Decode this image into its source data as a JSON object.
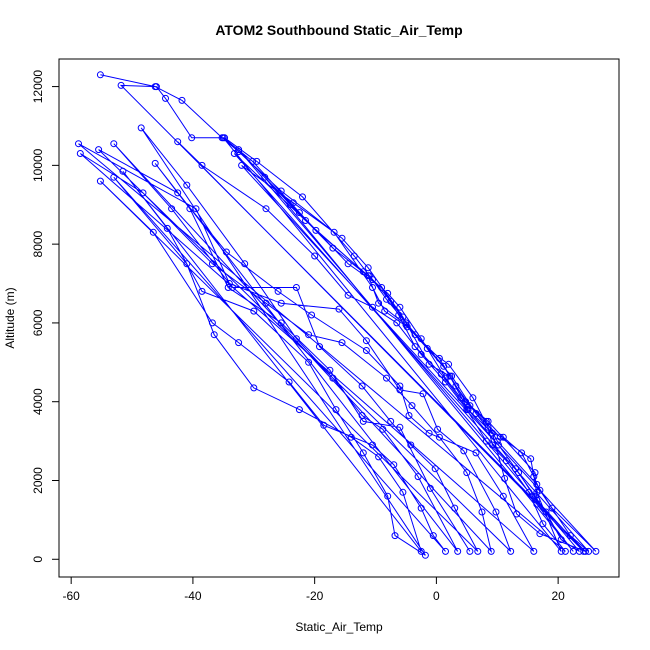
{
  "chart_data": {
    "type": "scatter",
    "title": "ATOM2 Southbound Static_Air_Temp",
    "xlabel": "Static_Air_Temp",
    "ylabel": "Altitude (m)",
    "xlim": [
      -62,
      30
    ],
    "ylim": [
      -450,
      12700
    ],
    "x_ticks": [
      -60,
      -40,
      -20,
      0,
      20
    ],
    "y_ticks": [
      0,
      2000,
      4000,
      6000,
      8000,
      10000,
      12000
    ],
    "grid": false,
    "series": [
      {
        "color": "#0000ff",
        "marker": "open-circle",
        "line": true,
        "points": [
          [
            -55.2,
            12300
          ],
          [
            -46.2,
            12000
          ],
          [
            -41.8,
            11650
          ],
          [
            -35.2,
            10700
          ],
          [
            -32.5,
            10350
          ],
          [
            -25.5,
            9350
          ],
          [
            -15.5,
            8150
          ],
          [
            -11.2,
            7400
          ],
          [
            -5.5,
            6150
          ],
          [
            -1.2,
            4950
          ],
          [
            2.2,
            4650
          ],
          [
            5.2,
            3800
          ],
          [
            9.2,
            3200
          ],
          [
            11.2,
            2050
          ],
          [
            13.2,
            1150
          ],
          [
            17.0,
            650
          ],
          [
            24.5,
            200
          ],
          [
            -51.8,
            12030
          ],
          [
            -46.0,
            12000
          ],
          [
            -44.5,
            11700
          ],
          [
            -40.2,
            10700
          ],
          [
            -34.8,
            10700
          ],
          [
            -29.5,
            10100
          ],
          [
            -22.0,
            9200
          ],
          [
            -13.5,
            7700
          ],
          [
            -11.0,
            7200
          ],
          [
            -7.5,
            6550
          ],
          [
            -3.5,
            5700
          ],
          [
            2.5,
            4650
          ],
          [
            6.5,
            3700
          ],
          [
            10.5,
            3100
          ],
          [
            15.5,
            2550
          ],
          [
            16.5,
            1700
          ],
          [
            20.5,
            200
          ],
          [
            -35.0,
            10700
          ],
          [
            -30.2,
            10100
          ],
          [
            -19.8,
            8350
          ],
          [
            -11.2,
            7200
          ],
          [
            -9.5,
            6500
          ],
          [
            -5.0,
            5950
          ],
          [
            -1.5,
            5350
          ],
          [
            2.0,
            4950
          ],
          [
            6.0,
            4100
          ],
          [
            8.5,
            3350
          ],
          [
            9.2,
            2900
          ],
          [
            13.0,
            2300
          ],
          [
            16.2,
            1600
          ],
          [
            18.0,
            1200
          ],
          [
            20.5,
            500
          ],
          [
            23.5,
            200
          ],
          [
            -32.5,
            10400
          ],
          [
            -24.0,
            9000
          ],
          [
            -17.0,
            7900
          ],
          [
            -10.5,
            7100
          ],
          [
            -8.2,
            6600
          ],
          [
            -5.0,
            6000
          ],
          [
            1.2,
            4900
          ],
          [
            3.2,
            4400
          ],
          [
            5.5,
            3900
          ],
          [
            9.0,
            3200
          ],
          [
            11.0,
            3100
          ],
          [
            14.0,
            2700
          ],
          [
            16.0,
            2100
          ],
          [
            17.0,
            1750
          ],
          [
            22.0,
            600
          ],
          [
            25.0,
            200
          ],
          [
            -33.2,
            10300
          ],
          [
            -21.5,
            8600
          ],
          [
            -12.0,
            7300
          ],
          [
            -8.0,
            6750
          ],
          [
            -6.0,
            6400
          ],
          [
            -2.5,
            5600
          ],
          [
            1.5,
            4600
          ],
          [
            4.0,
            4100
          ],
          [
            8.2,
            3500
          ],
          [
            10.0,
            3000
          ],
          [
            16.5,
            1900
          ],
          [
            19.0,
            1300
          ],
          [
            26.2,
            200
          ],
          [
            -32.0,
            10000
          ],
          [
            -23.5,
            9050
          ],
          [
            -16.8,
            8300
          ],
          [
            -10.5,
            6900
          ],
          [
            -8.5,
            6300
          ],
          [
            -4.8,
            5900
          ],
          [
            0.5,
            5100
          ],
          [
            4.8,
            4000
          ],
          [
            8.5,
            3500
          ],
          [
            16.2,
            2200
          ],
          [
            16.5,
            1400
          ],
          [
            22.5,
            200
          ],
          [
            -28.2,
            9700
          ],
          [
            -22.5,
            8800
          ],
          [
            -14.5,
            7500
          ],
          [
            -9.0,
            6900
          ],
          [
            -6.2,
            6200
          ],
          [
            -3.5,
            5400
          ],
          [
            0.8,
            4700
          ],
          [
            5.2,
            3800
          ],
          [
            10.2,
            2900
          ],
          [
            13.5,
            2200
          ],
          [
            16.5,
            1500
          ],
          [
            24.2,
            200
          ],
          [
            -42.5,
            10600
          ],
          [
            -38.5,
            10000
          ],
          [
            -28.0,
            8900
          ],
          [
            -20.0,
            7700
          ],
          [
            -14.5,
            6700
          ],
          [
            -10.5,
            6400
          ],
          [
            -6.5,
            6000
          ],
          [
            -2.5,
            5200
          ],
          [
            1.5,
            4500
          ],
          [
            5.0,
            3800
          ],
          [
            8.2,
            3000
          ],
          [
            11.5,
            2500
          ],
          [
            15.2,
            1700
          ],
          [
            17.5,
            900
          ],
          [
            21.2,
            200
          ],
          [
            -58.8,
            10550
          ],
          [
            -39.5,
            8900
          ],
          [
            -34.0,
            7000
          ],
          [
            -25.5,
            6500
          ],
          [
            -16.0,
            6350
          ],
          [
            -11.5,
            5550
          ],
          [
            -6.0,
            4300
          ],
          [
            -2.2,
            4200
          ],
          [
            0.2,
            3300
          ],
          [
            4.5,
            2750
          ],
          [
            9.8,
            1200
          ],
          [
            12.2,
            200
          ],
          [
            -55.5,
            10400
          ],
          [
            -42.5,
            9300
          ],
          [
            -34.5,
            7800
          ],
          [
            -26.0,
            6800
          ],
          [
            -20.5,
            6200
          ],
          [
            -11.5,
            5300
          ],
          [
            -6.0,
            4400
          ],
          [
            -4.5,
            3650
          ],
          [
            -1.2,
            3200
          ],
          [
            6.5,
            2700
          ],
          [
            11.0,
            1600
          ],
          [
            16.0,
            200
          ],
          [
            -58.5,
            10300
          ],
          [
            -48.2,
            9300
          ],
          [
            -36.8,
            7500
          ],
          [
            -28.0,
            6500
          ],
          [
            -21.0,
            5700
          ],
          [
            -15.5,
            5500
          ],
          [
            -8.2,
            4600
          ],
          [
            -4.0,
            3900
          ],
          [
            0.5,
            3100
          ],
          [
            5.0,
            2200
          ],
          [
            7.5,
            1200
          ],
          [
            9.0,
            200
          ],
          [
            -53.0,
            10550
          ],
          [
            -43.5,
            8900
          ],
          [
            -33.5,
            6900
          ],
          [
            -23.0,
            6900
          ],
          [
            -19.2,
            5400
          ],
          [
            -12.2,
            4400
          ],
          [
            -7.5,
            3500
          ],
          [
            -4.2,
            2900
          ],
          [
            -0.2,
            2300
          ],
          [
            3.0,
            1300
          ],
          [
            6.8,
            200
          ],
          [
            -55.2,
            9600
          ],
          [
            -46.5,
            8300
          ],
          [
            -36.8,
            6000
          ],
          [
            -32.5,
            5500
          ],
          [
            -24.2,
            4500
          ],
          [
            -18.5,
            3400
          ],
          [
            -10.5,
            2900
          ],
          [
            -7.0,
            2400
          ],
          [
            -2.5,
            1300
          ],
          [
            -0.5,
            600
          ],
          [
            1.5,
            200
          ],
          [
            -53.0,
            9700
          ],
          [
            -41.0,
            7500
          ],
          [
            -36.5,
            5700
          ],
          [
            -30.0,
            4350
          ],
          [
            -22.5,
            3800
          ],
          [
            -14.0,
            3100
          ],
          [
            -9.5,
            2600
          ],
          [
            -5.5,
            1700
          ],
          [
            -2.5,
            200
          ],
          [
            -51.5,
            9850
          ],
          [
            -44.2,
            8400
          ],
          [
            -38.5,
            6800
          ],
          [
            -30.0,
            6300
          ],
          [
            -21.0,
            5000
          ],
          [
            -16.5,
            3800
          ],
          [
            -12.0,
            2700
          ],
          [
            -8.0,
            1600
          ],
          [
            -6.8,
            600
          ],
          [
            -1.8,
            100
          ],
          [
            -48.5,
            10950
          ],
          [
            -41.0,
            9500
          ],
          [
            -31.5,
            7500
          ],
          [
            -23.0,
            5600
          ],
          [
            -17.0,
            4600
          ],
          [
            -12.2,
            3650
          ],
          [
            -8.8,
            3300
          ],
          [
            -3.0,
            2100
          ],
          [
            3.5,
            200
          ],
          [
            -46.2,
            10050
          ],
          [
            -40.5,
            8900
          ],
          [
            -34.2,
            6900
          ],
          [
            -25.5,
            6000
          ],
          [
            -17.5,
            4800
          ],
          [
            -12.0,
            3500
          ],
          [
            -6.0,
            3350
          ],
          [
            -1.0,
            1800
          ],
          [
            5.5,
            200
          ]
        ]
      }
    ]
  }
}
